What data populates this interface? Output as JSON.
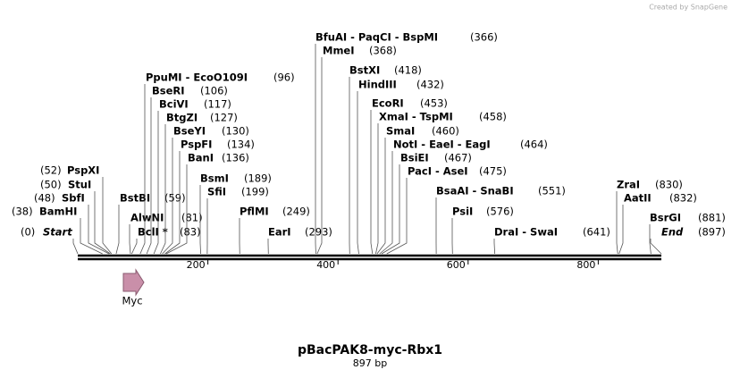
{
  "header": {
    "credit": "Created by SnapGene"
  },
  "map": {
    "range": [
      0,
      897
    ],
    "ticks": [
      200,
      400,
      600,
      800
    ],
    "sites": [
      {
        "name": "Start",
        "position": {
          "value": 0,
          "label": "(0)"
        }
      },
      {
        "name": "BamHI",
        "position": {
          "value": 38,
          "label": "(38)"
        }
      },
      {
        "name": "SbfI",
        "position": {
          "value": 48,
          "label": "(48)"
        }
      },
      {
        "name": "StuI",
        "position": {
          "value": 50,
          "label": "(50)"
        }
      },
      {
        "name": "PspXI",
        "position": {
          "value": 52,
          "label": "(52)"
        }
      },
      {
        "name": "BstBI",
        "position": {
          "value": 59,
          "label": "(59)"
        }
      },
      {
        "name": "AlwNI",
        "position": {
          "value": 81,
          "label": "(81)"
        }
      },
      {
        "name": "BclI *",
        "position": {
          "value": 83,
          "label": "(83)"
        }
      },
      {
        "name": "PpuMI - EcoO109I",
        "position": {
          "value": 96,
          "label": "(96)"
        }
      },
      {
        "name": "BseRI",
        "position": {
          "value": 106,
          "label": "(106)"
        }
      },
      {
        "name": "BciVI",
        "position": {
          "value": 117,
          "label": "(117)"
        }
      },
      {
        "name": "BtgZI",
        "position": {
          "value": 127,
          "label": "(127)"
        }
      },
      {
        "name": "BseYI",
        "position": {
          "value": 130,
          "label": "(130)"
        }
      },
      {
        "name": "PspFI",
        "position": {
          "value": 134,
          "label": "(134)"
        }
      },
      {
        "name": "BanI",
        "position": {
          "value": 136,
          "label": "(136)"
        }
      },
      {
        "name": "BsmI",
        "position": {
          "value": 189,
          "label": "(189)"
        }
      },
      {
        "name": "SfiI",
        "position": {
          "value": 199,
          "label": "(199)"
        }
      },
      {
        "name": "PflMI",
        "position": {
          "value": 249,
          "label": "(249)"
        }
      },
      {
        "name": "EarI",
        "position": {
          "value": 293,
          "label": "(293)"
        }
      },
      {
        "name": "BfuAI - PaqCI - BspMI",
        "position": {
          "value": 366,
          "label": "(366)"
        }
      },
      {
        "name": "MmeI",
        "position": {
          "value": 368,
          "label": "(368)"
        }
      },
      {
        "name": "BstXI",
        "position": {
          "value": 418,
          "label": "(418)"
        }
      },
      {
        "name": "HindIII",
        "position": {
          "value": 432,
          "label": "(432)"
        }
      },
      {
        "name": "EcoRI",
        "position": {
          "value": 453,
          "label": "(453)"
        }
      },
      {
        "name": "XmaI - TspMI",
        "position": {
          "value": 458,
          "label": "(458)"
        }
      },
      {
        "name": "SmaI",
        "position": {
          "value": 460,
          "label": "(460)"
        }
      },
      {
        "name": "NotI - EaeI - EagI",
        "position": {
          "value": 464,
          "label": "(464)"
        }
      },
      {
        "name": "BsiEI",
        "position": {
          "value": 467,
          "label": "(467)"
        }
      },
      {
        "name": "PacI - AseI",
        "position": {
          "value": 475,
          "label": "(475)"
        }
      },
      {
        "name": "BsaAI - SnaBI",
        "position": {
          "value": 551,
          "label": "(551)"
        }
      },
      {
        "name": "PsiI",
        "position": {
          "value": 576,
          "label": "(576)"
        }
      },
      {
        "name": "DraI - SwaI",
        "position": {
          "value": 641,
          "label": "(641)"
        }
      },
      {
        "name": "ZraI",
        "position": {
          "value": 830,
          "label": "(830)"
        }
      },
      {
        "name": "AatII",
        "position": {
          "value": 832,
          "label": "(832)"
        }
      },
      {
        "name": "BsrGI",
        "position": {
          "value": 881,
          "label": "(881)"
        }
      },
      {
        "name": "End",
        "position": {
          "value": 897,
          "label": "(897)"
        }
      }
    ],
    "features": [
      {
        "name": "Myc"
      }
    ]
  },
  "footer": {
    "title": "pBacPAK8-myc-Rbx1",
    "length": "897 bp"
  }
}
